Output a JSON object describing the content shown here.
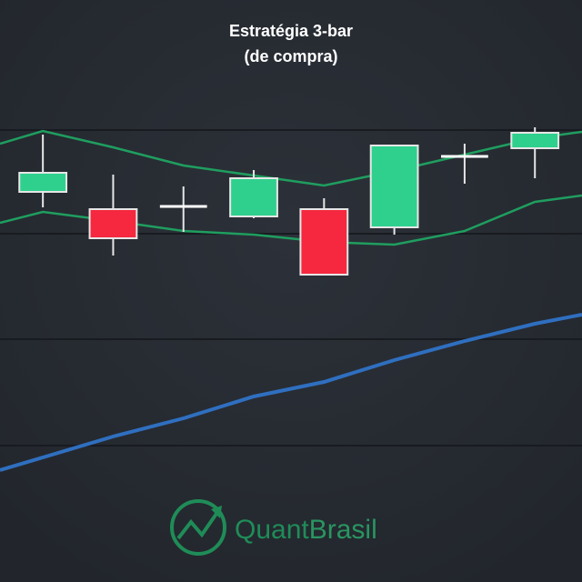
{
  "chart_data": {
    "type": "candlestick",
    "title": [
      "Estratégia 3-bar",
      "(de compra)"
    ],
    "x": [
      1,
      2,
      3,
      4,
      5,
      6,
      7,
      8
    ],
    "open": [
      429,
      410,
      413,
      402,
      410,
      390,
      468,
      477
    ],
    "high": [
      492,
      448,
      435,
      453,
      422,
      480,
      482,
      500
    ],
    "low": [
      412,
      359,
      385,
      400,
      337,
      382,
      438,
      444
    ],
    "close": [
      450,
      378,
      413,
      444,
      338,
      480,
      468,
      494
    ],
    "up_color": "#2fd08e",
    "down_color": "#f5283f",
    "doji_color": "#ffffff",
    "lines": [
      {
        "x": [
          0.39,
          1,
          2,
          3,
          4,
          5,
          6,
          7,
          8,
          8.67
        ],
        "values": [
          482,
          496,
          478,
          458,
          447,
          436,
          452,
          470,
          488,
          495
        ],
        "color": "#1f9e5f"
      },
      {
        "x": [
          0.39,
          1,
          2,
          3,
          4,
          5,
          6,
          7,
          8,
          8.67
        ],
        "values": [
          395,
          407,
          397,
          386,
          382,
          374,
          371,
          386,
          418,
          425
        ],
        "color": "#1f9e5f"
      },
      {
        "x": [
          0.39,
          1,
          2,
          3,
          4,
          5,
          6,
          7,
          8,
          8.67
        ],
        "values": [
          123,
          137,
          160,
          180,
          204,
          220,
          244,
          265,
          284,
          294
        ],
        "color": "#2f6fc0"
      }
    ],
    "xlim": [
      0.39,
      8.67
    ],
    "ylim": [
      0,
      640
    ],
    "gridlines": [
      150,
      267,
      383,
      497
    ],
    "brand": [
      "Quant",
      "Brasil"
    ]
  }
}
